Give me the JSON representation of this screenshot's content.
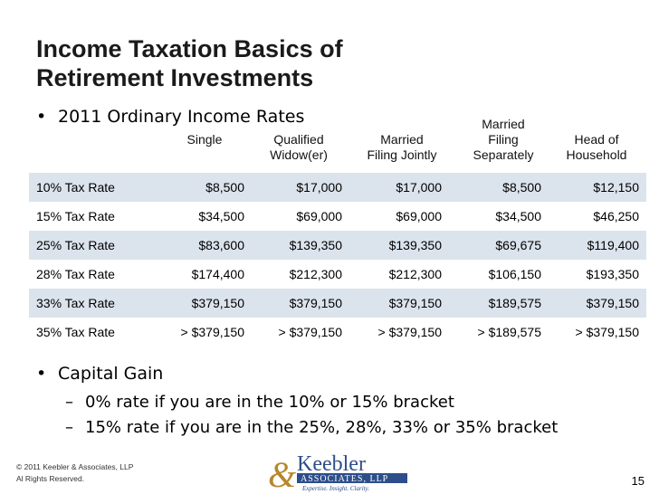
{
  "title_lines": [
    "Income Taxation Basics of",
    "Retirement Investments"
  ],
  "bullet1": "2011 Ordinary Income Rates",
  "columns": [
    {
      "line1": "",
      "line2": "",
      "line3": "Single"
    },
    {
      "line1": "",
      "line2": "Qualified",
      "line3": "Widow(er)"
    },
    {
      "line1": "",
      "line2": "Married",
      "line3": "Filing Jointly"
    },
    {
      "line1": "Married",
      "line2": "Filing",
      "line3": "Separately"
    },
    {
      "line1": "",
      "line2": "Head of",
      "line3": "Household"
    }
  ],
  "rows": [
    {
      "label": "10% Tax Rate",
      "values": [
        "$8,500",
        "$17,000",
        "$17,000",
        "$8,500",
        "$12,150"
      ]
    },
    {
      "label": "15% Tax Rate",
      "values": [
        "$34,500",
        "$69,000",
        "$69,000",
        "$34,500",
        "$46,250"
      ]
    },
    {
      "label": "25% Tax Rate",
      "values": [
        "$83,600",
        "$139,350",
        "$139,350",
        "$69,675",
        "$119,400"
      ]
    },
    {
      "label": "28% Tax Rate",
      "values": [
        "$174,400",
        "$212,300",
        "$212,300",
        "$106,150",
        "$193,350"
      ]
    },
    {
      "label": "33% Tax Rate",
      "values": [
        "$379,150",
        "$379,150",
        "$379,150",
        "$189,575",
        "$379,150"
      ]
    },
    {
      "label": "35% Tax Rate",
      "values": [
        "> $379,150",
        "> $379,150",
        "> $379,150",
        "> $189,575",
        "> $379,150"
      ]
    }
  ],
  "bullet2": "Capital Gain",
  "sub1": "0% rate if you are in the 10% or 15% bracket",
  "sub2": "15% rate if you are in the 25%, 28%, 33% or 35% bracket",
  "copyright_line1": "© 2011 Keebler & Associates, LLP",
  "copyright_line2": "Al Rights Reserved.",
  "logo": {
    "name": "Keebler",
    "ampersand": "&",
    "associates": "ASSOCIATES, LLP",
    "tagline": "Expertise. Insight. Clarity."
  },
  "page_number": "15",
  "colors": {
    "row_shade": "#dbe3ec",
    "logo_blue": "#2d4e8a",
    "logo_gold": "#b8862b"
  }
}
